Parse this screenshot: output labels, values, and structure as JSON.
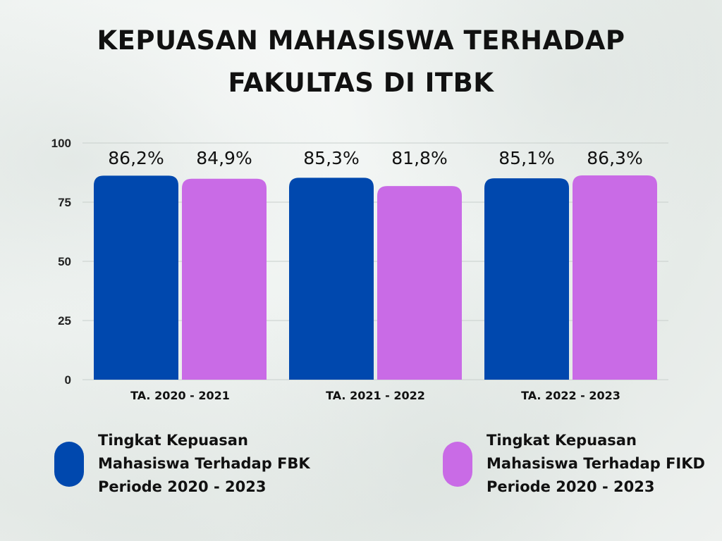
{
  "title_lines": [
    "KEPUASAN MAHASISWA TERHADAP",
    "FAKULTAS DI ITBK"
  ],
  "chart_data": {
    "type": "bar",
    "categories": [
      "TA. 2020 - 2021",
      "TA. 2021 - 2022",
      "TA. 2022 - 2023"
    ],
    "series": [
      {
        "color": "#0048ae",
        "values": [
          86.2,
          85.3,
          85.1
        ],
        "labels": [
          "86,2%",
          "85,3%",
          "85,1%"
        ]
      },
      {
        "color": "#c96be6",
        "values": [
          84.9,
          81.8,
          86.3
        ],
        "labels": [
          "84,9%",
          "81,8%",
          "86,3%"
        ]
      }
    ],
    "ylim": [
      0,
      100
    ],
    "yticks": [
      0,
      25,
      50,
      75,
      100
    ],
    "grid": true
  },
  "legend": [
    {
      "lines": [
        "Tingkat Kepuasan",
        "Mahasiswa Terhadap FBK",
        "Periode 2020 - 2023"
      ],
      "color": "#0048ae"
    },
    {
      "lines": [
        "Tingkat Kepuasan",
        "Mahasiswa Terhadap FIKD",
        "Periode 2020 - 2023"
      ],
      "color": "#c96be6"
    }
  ]
}
